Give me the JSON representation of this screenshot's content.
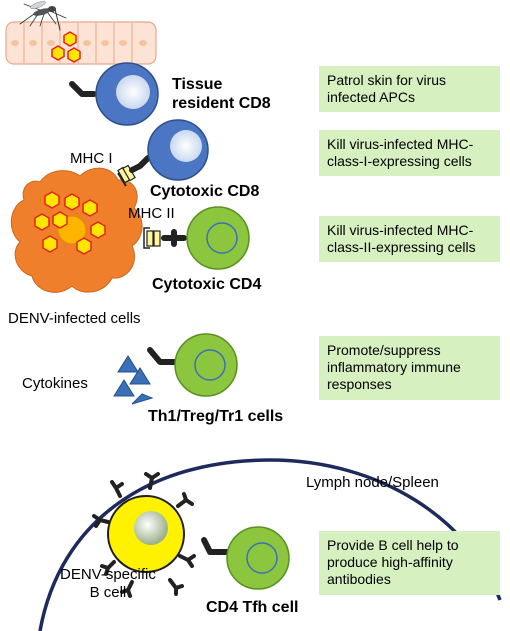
{
  "cells": {
    "tissue_cd8": [
      "Tissue",
      "resident CD8"
    ],
    "cytotoxic_cd8": "Cytotoxic CD8",
    "cytotoxic_cd4": "Cytotoxic CD4",
    "th_treg_tr1": "Th1/Treg/Tr1 cells",
    "cd4_tfh": "CD4 Tfh cell",
    "denv_b_cell": [
      "DENV-specific",
      "B cell"
    ]
  },
  "labels": {
    "mhc_i": "MHC I",
    "mhc_ii": "MHC II",
    "denv_infected": "DENV-infected cells",
    "cytokines": "Cytokines",
    "lymph_node": "Lymph node/Spleen"
  },
  "functions": [
    [
      "Patrol skin for virus",
      "infected APCs"
    ],
    [
      "Kill virus-infected MHC-",
      "class-I-expressing cells"
    ],
    [
      "Kill virus-infected MHC-",
      "class-II-expressing cells"
    ],
    [
      "Promote/suppress",
      "inflammatory immune",
      "responses"
    ],
    [
      "Provide B cell help to",
      "produce high-affinity",
      "antibodies"
    ]
  ],
  "colors": {
    "cd8_blue": "#4a76c4",
    "cd4_green": "#8cc63f",
    "infected_orange": "#f07f2b",
    "virus_yellow": "#ffe600",
    "function_box": "#d6f0c0",
    "lymph_arc": "#1f2a5c",
    "cytokine_blue": "#3a70b8",
    "skin_pink": "#fde3d6"
  }
}
